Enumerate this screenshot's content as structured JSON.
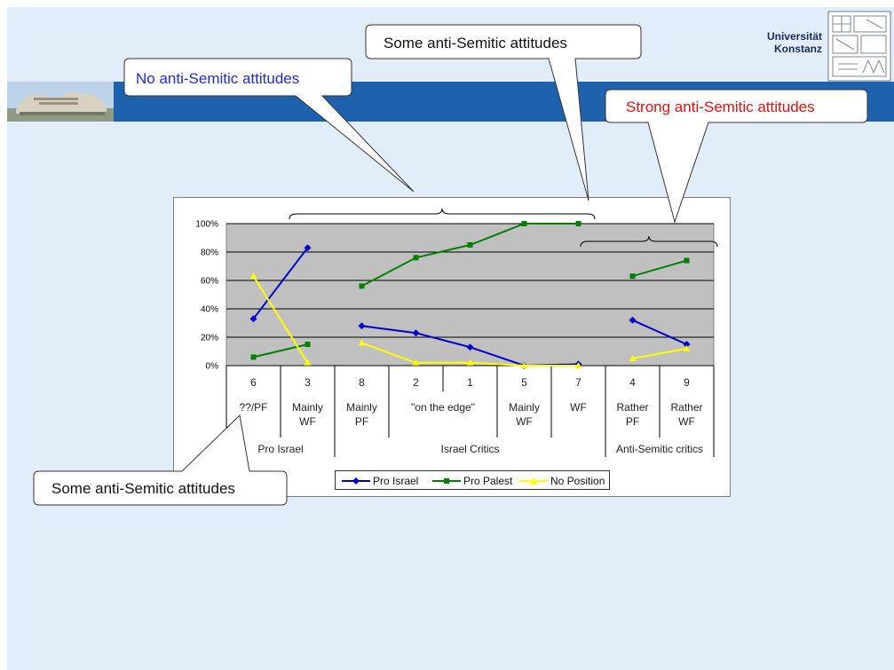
{
  "header": {
    "university_line1": "Universität",
    "university_line2": "Konstanz",
    "logo_icon": "university-seal-icon",
    "photo_icon": "campus-building-photo"
  },
  "callouts": {
    "no_antisemitic": "No anti-Semitic attitudes",
    "some_antisemitic_top": "Some anti-Semitic  attitudes",
    "strong_antisemitic": "Strong anti-Semitic  attitudes",
    "some_antisemitic_bottom": "Some anti-Semitic  attitudes"
  },
  "colors": {
    "background": "#e1edf8",
    "band": "#1e62ad",
    "plot_area": "#c0c0c0",
    "pro_israel": "#0000cc",
    "pro_palest": "#008000",
    "no_position": "#ffff00",
    "callout_blue": "#1f2bd6",
    "callout_red": "#e01010"
  },
  "chart_data": {
    "type": "line",
    "y_ticks": [
      "0%",
      "20%",
      "40%",
      "60%",
      "80%",
      "100%"
    ],
    "ylim": [
      0,
      100
    ],
    "grid": true,
    "legend_position": "bottom",
    "categories": [
      {
        "number": "6",
        "label": "??/PF"
      },
      {
        "number": "3",
        "label": "Mainly WF"
      },
      {
        "number": "8",
        "label": "Mainly PF"
      },
      {
        "number": "2",
        "label": "\"on the edge\""
      },
      {
        "number": "1",
        "label": ""
      },
      {
        "number": "5",
        "label": "Mainly WF"
      },
      {
        "number": "7",
        "label": "WF"
      },
      {
        "number": "4",
        "label": "Rather PF"
      },
      {
        "number": "9",
        "label": "Rather WF"
      }
    ],
    "groups": [
      {
        "name": "Pro Israel",
        "span": [
          0,
          1
        ]
      },
      {
        "name": "Israel Critics",
        "span": [
          2,
          6
        ]
      },
      {
        "name": "Anti-Semitic critics",
        "span": [
          7,
          8
        ]
      }
    ],
    "series": [
      {
        "name": "Pro Israel",
        "color": "#0000cc",
        "marker": "diamond",
        "segments": [
          [
            0,
            1
          ],
          [
            2,
            3,
            4,
            5,
            6
          ],
          [
            7,
            8
          ]
        ],
        "values": [
          33,
          83,
          28,
          23,
          13,
          0,
          1,
          32,
          15
        ]
      },
      {
        "name": "Pro Palest",
        "color": "#008000",
        "marker": "square",
        "segments": [
          [
            0,
            1
          ],
          [
            2,
            3,
            4,
            5,
            6
          ],
          [
            7,
            8
          ]
        ],
        "values": [
          6,
          15,
          56,
          76,
          85,
          100,
          100,
          63,
          74
        ]
      },
      {
        "name": "No Position",
        "color": "#ffff00",
        "marker": "triangle",
        "segments": [
          [
            0,
            1
          ],
          [
            2,
            3,
            4,
            5,
            6
          ],
          [
            7,
            8
          ]
        ],
        "values": [
          63,
          2,
          16,
          2,
          2,
          0,
          0,
          5,
          12
        ]
      }
    ]
  }
}
